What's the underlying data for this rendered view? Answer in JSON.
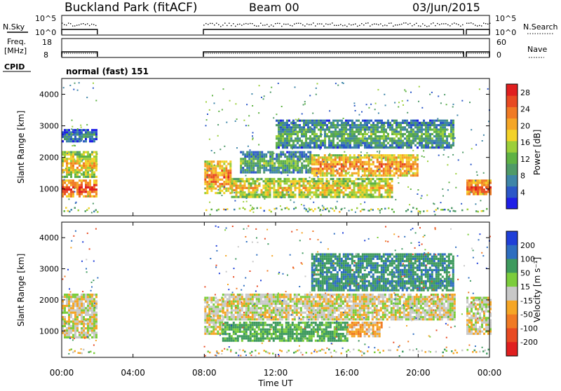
{
  "header": {
    "site": "Buckland Park (fitACF)",
    "beam": "Beam 00",
    "date": "03/Jun/2015"
  },
  "status": {
    "nsky_label": "N.Sky",
    "nsearch_label": "N.Search",
    "freq_label_line1": "Freq.",
    "freq_label_line2": "[MHz]",
    "nave_label": "Nave",
    "cpid_label": "CPID",
    "cpid_value": "normal (fast) 151",
    "nsky_ticks": [
      "10^5",
      "10^0"
    ],
    "freq_ticks": [
      "18",
      "8"
    ],
    "nave_ticks": [
      "60",
      "0"
    ]
  },
  "chart_data": [
    {
      "type": "heatmap",
      "name": "Power",
      "xlabel": "Time UT",
      "ylabel": "Slant Range [km]",
      "xlim": [
        0,
        24
      ],
      "ylim": [
        150,
        4500
      ],
      "x_ticks": [
        "00:00",
        "04:00",
        "08:00",
        "12:00",
        "16:00",
        "20:00",
        "00:00"
      ],
      "y_ticks": [
        "1000",
        "2000",
        "3000",
        "4000"
      ],
      "colorbar": {
        "label": "Power [dB]",
        "ticks": [
          "4",
          "8",
          "12",
          "16",
          "20",
          "24",
          "28"
        ],
        "colors": [
          "#1f1fe6",
          "#2b57c8",
          "#3e85a8",
          "#4f9a68",
          "#5fb244",
          "#9ccf3a",
          "#f3d228",
          "#f5a626",
          "#f07a24",
          "#e84a22",
          "#e01f1f"
        ]
      },
      "data_gaps_ut": [
        [
          2.0,
          7.95
        ],
        [
          22.55,
          22.7
        ]
      ],
      "echo_bands": [
        {
          "t": [
            0.0,
            2.0
          ],
          "range": [
            800,
            1300
          ],
          "level": 28
        },
        {
          "t": [
            0.0,
            2.0
          ],
          "range": [
            1400,
            2200
          ],
          "level": 20
        },
        {
          "t": [
            0.0,
            2.0
          ],
          "range": [
            2500,
            2900
          ],
          "level": 8
        },
        {
          "t": [
            8.0,
            9.5
          ],
          "range": [
            900,
            1900
          ],
          "level": 24
        },
        {
          "t": [
            9.5,
            18.5
          ],
          "range": [
            750,
            1350
          ],
          "level": 20
        },
        {
          "t": [
            10.0,
            14.0
          ],
          "range": [
            1500,
            2200
          ],
          "level": 12
        },
        {
          "t": [
            14.0,
            20.0
          ],
          "range": [
            1400,
            2100
          ],
          "level": 24
        },
        {
          "t": [
            12.0,
            22.0
          ],
          "range": [
            2300,
            3200
          ],
          "level": 12
        },
        {
          "t": [
            22.7,
            24.0
          ],
          "range": [
            850,
            1300
          ],
          "level": 28
        }
      ]
    },
    {
      "type": "heatmap",
      "name": "Velocity",
      "xlabel": "Time UT",
      "ylabel": "Slant Range [km]",
      "xlim": [
        0,
        24
      ],
      "ylim": [
        150,
        4500
      ],
      "x_ticks": [
        "00:00",
        "04:00",
        "08:00",
        "12:00",
        "16:00",
        "20:00",
        "00:00"
      ],
      "y_ticks": [
        "1000",
        "2000",
        "3000",
        "4000"
      ],
      "colorbar": {
        "label": "Velocity [m s⁻¹]",
        "ticks": [
          "200",
          "100",
          "50",
          "15",
          "-15",
          "-50",
          "-100",
          "-200"
        ],
        "colors": [
          "#1f3fd8",
          "#2e6ec0",
          "#3e9a5e",
          "#7ccd3c",
          "#c8c8c8",
          "#f5a626",
          "#f07a24",
          "#e84a22",
          "#e01f1f"
        ]
      },
      "data_gaps_ut": [
        [
          2.0,
          7.95
        ],
        [
          22.55,
          22.7
        ]
      ],
      "echo_bands": [
        {
          "t": [
            0.0,
            2.0
          ],
          "range": [
            800,
            2200
          ],
          "level": 0
        },
        {
          "t": [
            8.0,
            9.0
          ],
          "range": [
            900,
            2100
          ],
          "level": 0
        },
        {
          "t": [
            9.0,
            16.0
          ],
          "range": [
            700,
            1300
          ],
          "level": 40
        },
        {
          "t": [
            16.0,
            18.0
          ],
          "range": [
            800,
            1300
          ],
          "level": -30
        },
        {
          "t": [
            9.0,
            22.0
          ],
          "range": [
            1400,
            2200
          ],
          "level": 0
        },
        {
          "t": [
            14.0,
            22.0
          ],
          "range": [
            2300,
            3500
          ],
          "level": 60
        },
        {
          "t": [
            22.7,
            24.0
          ],
          "range": [
            900,
            2100
          ],
          "level": 0
        }
      ]
    }
  ]
}
